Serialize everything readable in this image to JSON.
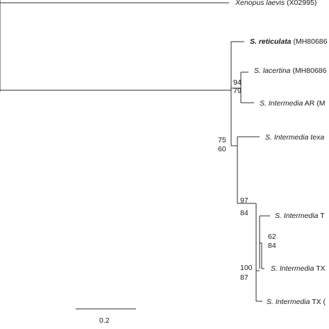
{
  "taxa": {
    "xenopus": {
      "species": "Xenopus laevis",
      "accession": "(X02995)"
    },
    "reticulata": {
      "species": "S. reticulata",
      "accession": "(MH80686"
    },
    "lacertina": {
      "species": "S. lacertina",
      "accession": "(MH80686"
    },
    "intermedia_ar": {
      "species": "S. Intermedia",
      "accession": "AR (M"
    },
    "intermedia_texana": {
      "species": "S. Intermedia texa",
      "accession": ""
    },
    "intermedia_t1": {
      "species": "S. Intermedia",
      "accession": "T"
    },
    "intermedia_tx2": {
      "species": "S. Intermedia",
      "accession": "TX"
    },
    "intermedia_tx3": {
      "species": "S. Intermedia",
      "accession": "TX ("
    }
  },
  "support": {
    "lac_ar_top": "94",
    "lac_ar_bottom": "79",
    "ingroup_top": "75",
    "ingroup_bottom": "60",
    "intermedia_top": "97",
    "intermedia_bottom": "84",
    "tx_inner_top": "62",
    "tx_inner_bottom": "84",
    "tx_clade_top": "100",
    "tx_clade_bottom": "87"
  },
  "scale_bar": {
    "label": "0.2"
  }
}
